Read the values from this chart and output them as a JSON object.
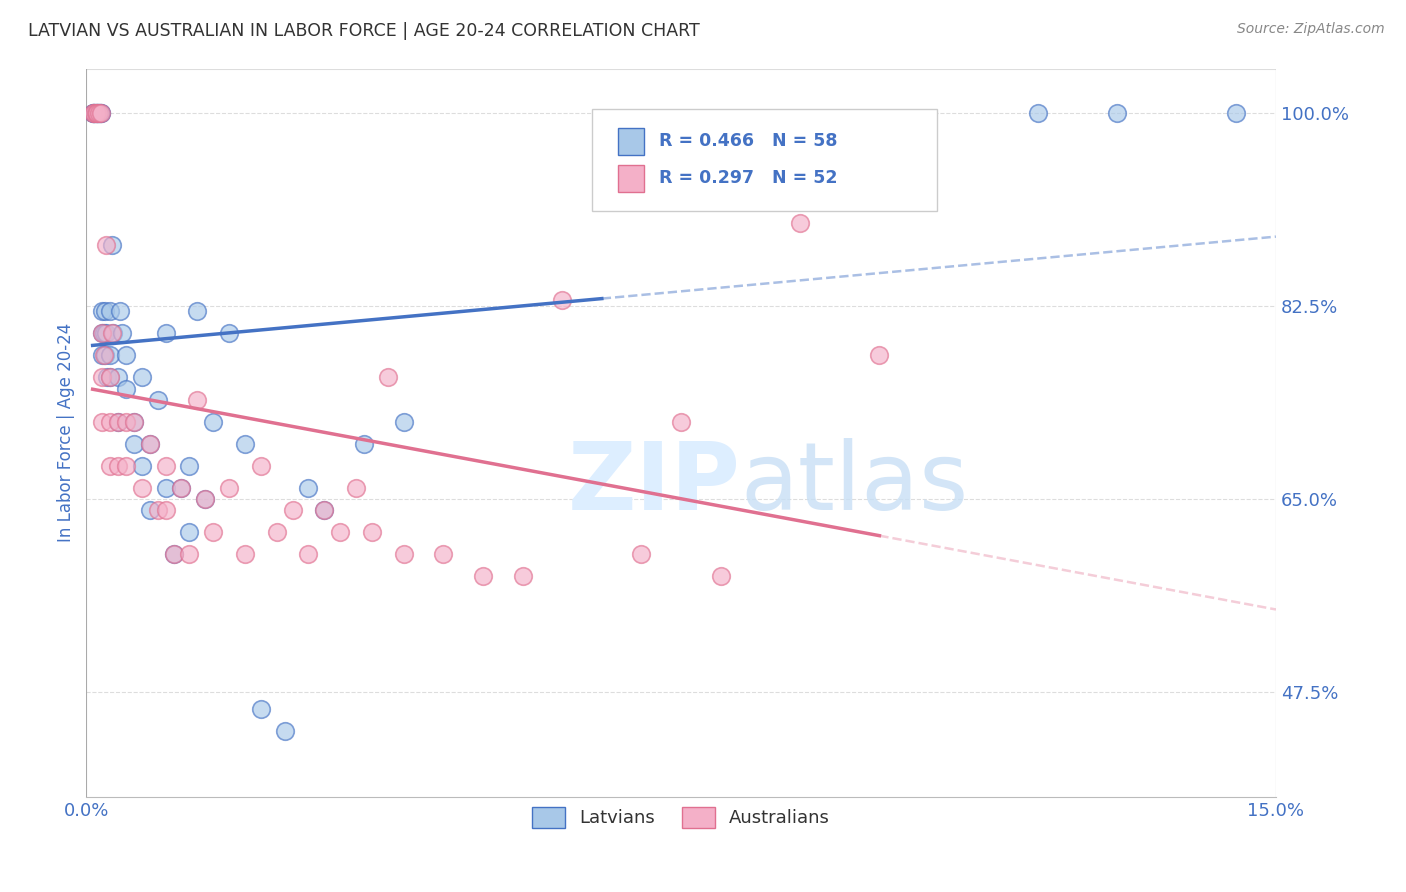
{
  "title": "LATVIAN VS AUSTRALIAN IN LABOR FORCE | AGE 20-24 CORRELATION CHART",
  "source": "Source: ZipAtlas.com",
  "ylabel": "In Labor Force | Age 20-24",
  "xlim": [
    0.0,
    0.15
  ],
  "ylim": [
    0.38,
    1.04
  ],
  "ytick_positions": [
    0.475,
    0.65,
    0.825,
    1.0
  ],
  "ytick_labels": [
    "47.5%",
    "65.0%",
    "82.5%",
    "100.0%"
  ],
  "xtick_positions": [
    0.0,
    0.025,
    0.05,
    0.075,
    0.1,
    0.125,
    0.15
  ],
  "xtick_labels": [
    "0.0%",
    "",
    "",
    "",
    "",
    "",
    "15.0%"
  ],
  "latvian_R": 0.466,
  "latvian_N": 58,
  "australian_R": 0.297,
  "australian_N": 52,
  "latvian_color": "#a8c8e8",
  "australian_color": "#f4b0c8",
  "trend_latvian_color": "#4472c4",
  "trend_australian_color": "#e07090",
  "latvian_x": [
    0.0008,
    0.0009,
    0.001,
    0.001,
    0.0012,
    0.0013,
    0.0014,
    0.0015,
    0.0016,
    0.0017,
    0.0018,
    0.0019,
    0.002,
    0.002,
    0.002,
    0.0022,
    0.0023,
    0.0024,
    0.0025,
    0.0026,
    0.003,
    0.003,
    0.003,
    0.0032,
    0.0034,
    0.004,
    0.004,
    0.0042,
    0.0045,
    0.005,
    0.005,
    0.006,
    0.006,
    0.007,
    0.007,
    0.008,
    0.008,
    0.009,
    0.01,
    0.01,
    0.011,
    0.012,
    0.013,
    0.013,
    0.014,
    0.015,
    0.016,
    0.018,
    0.02,
    0.022,
    0.025,
    0.028,
    0.03,
    0.035,
    0.04,
    0.12,
    0.13,
    0.145
  ],
  "latvian_y": [
    1.0,
    1.0,
    1.0,
    1.0,
    1.0,
    1.0,
    1.0,
    1.0,
    1.0,
    1.0,
    1.0,
    1.0,
    0.82,
    0.8,
    0.78,
    0.8,
    0.78,
    0.82,
    0.8,
    0.76,
    0.82,
    0.78,
    0.76,
    0.88,
    0.8,
    0.76,
    0.72,
    0.82,
    0.8,
    0.78,
    0.75,
    0.72,
    0.7,
    0.76,
    0.68,
    0.7,
    0.64,
    0.74,
    0.8,
    0.66,
    0.6,
    0.66,
    0.62,
    0.68,
    0.82,
    0.65,
    0.72,
    0.8,
    0.7,
    0.46,
    0.44,
    0.66,
    0.64,
    0.7,
    0.72,
    1.0,
    1.0,
    1.0
  ],
  "australian_x": [
    0.0008,
    0.001,
    0.0012,
    0.0014,
    0.0016,
    0.0018,
    0.002,
    0.002,
    0.002,
    0.0022,
    0.0025,
    0.003,
    0.003,
    0.003,
    0.0032,
    0.004,
    0.004,
    0.005,
    0.005,
    0.006,
    0.007,
    0.008,
    0.009,
    0.01,
    0.01,
    0.011,
    0.012,
    0.013,
    0.014,
    0.015,
    0.016,
    0.018,
    0.02,
    0.022,
    0.024,
    0.026,
    0.028,
    0.03,
    0.032,
    0.034,
    0.036,
    0.038,
    0.04,
    0.045,
    0.05,
    0.055,
    0.06,
    0.07,
    0.075,
    0.08,
    0.09,
    0.1
  ],
  "australian_y": [
    1.0,
    1.0,
    1.0,
    1.0,
    1.0,
    1.0,
    0.8,
    0.76,
    0.72,
    0.78,
    0.88,
    0.76,
    0.72,
    0.68,
    0.8,
    0.72,
    0.68,
    0.72,
    0.68,
    0.72,
    0.66,
    0.7,
    0.64,
    0.68,
    0.64,
    0.6,
    0.66,
    0.6,
    0.74,
    0.65,
    0.62,
    0.66,
    0.6,
    0.68,
    0.62,
    0.64,
    0.6,
    0.64,
    0.62,
    0.66,
    0.62,
    0.76,
    0.6,
    0.6,
    0.58,
    0.58,
    0.83,
    0.6,
    0.72,
    0.58,
    0.9,
    0.78
  ],
  "background_color": "#ffffff",
  "grid_color": "#dddddd",
  "title_color": "#333333",
  "axis_color": "#4472c4",
  "tick_color": "#4472c4",
  "watermark_color": "#ddeeff",
  "legend_latvian_label": "Latvians",
  "legend_australian_label": "Australians",
  "trend_line_x_start_latvian": 0.0008,
  "trend_line_x_end_latvian": 0.145,
  "trend_line_x_end_dashed": 0.15,
  "trend_line_x_start_australian": 0.0008,
  "trend_line_x_end_australian": 0.1
}
